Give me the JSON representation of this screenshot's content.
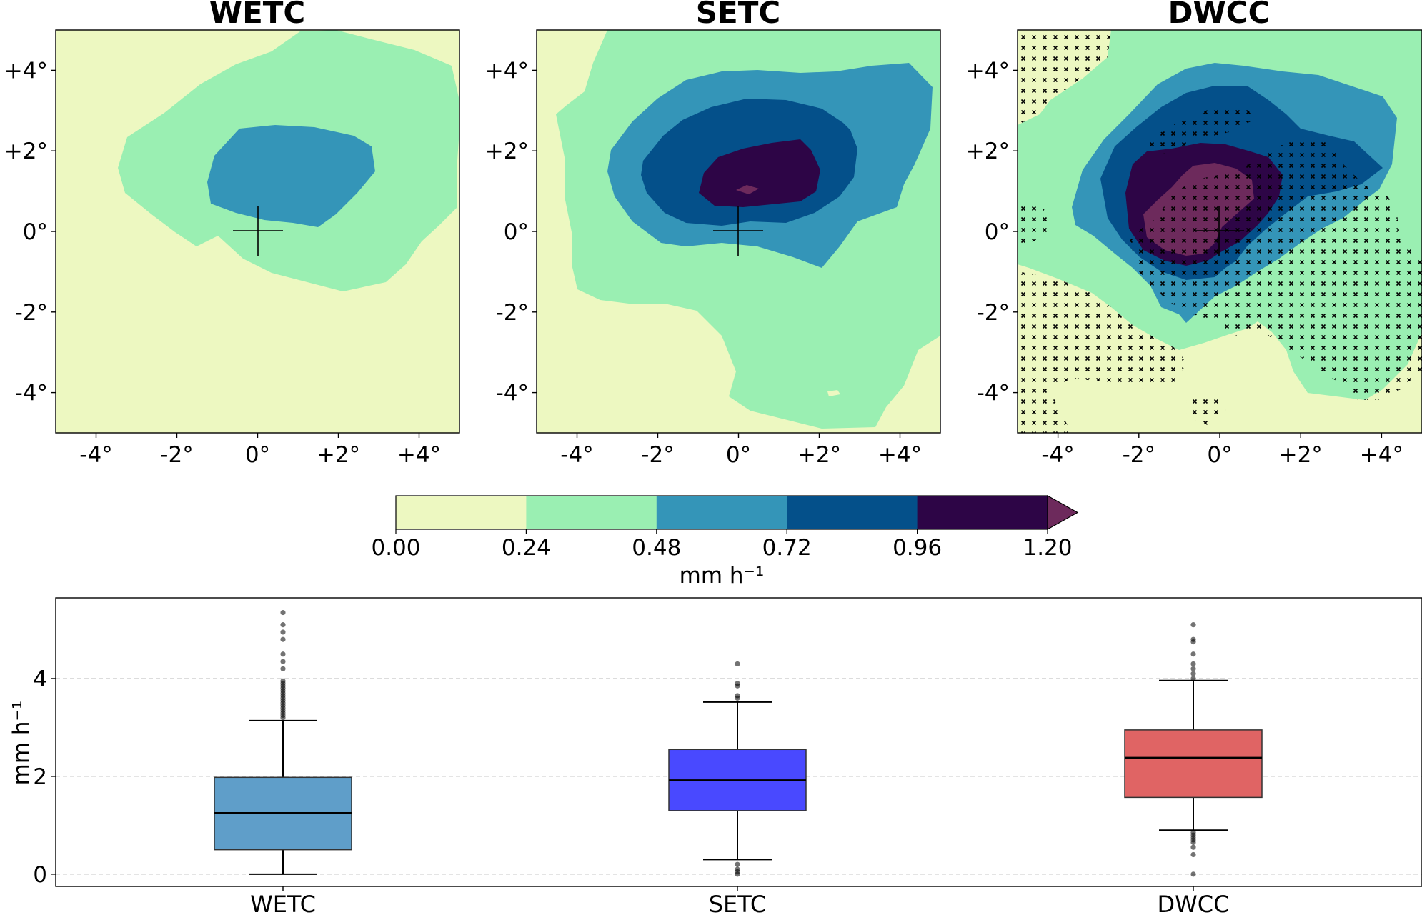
{
  "colors": {
    "levels": [
      "#edf8c1",
      "#9aefb2",
      "#3495b8",
      "#04508a",
      "#2d0546",
      "#6d2a5c"
    ],
    "hatch": "#000000",
    "grid": "#c8c8c8",
    "box_wetc": "#5f9ec9",
    "box_setc": "#4949ff",
    "box_dwcc": "#e06464"
  },
  "chart_data": [
    {
      "type": "heatmap",
      "title": "WETC",
      "xticks": [
        "-4°",
        "-2°",
        "0°",
        "+2°",
        "+4°"
      ],
      "yticks": [
        "+4°",
        "+2°",
        "0°",
        "-2°",
        "-4°"
      ],
      "xlim": [
        -5,
        5
      ],
      "ylim": [
        -5,
        5
      ],
      "center_marker": "+",
      "max_level_index": 2,
      "hatching": false
    },
    {
      "type": "heatmap",
      "title": "SETC",
      "xticks": [
        "-4°",
        "-2°",
        "0°",
        "+2°",
        "+4°"
      ],
      "yticks": [
        "+4°",
        "+2°",
        "0°",
        "-2°",
        "-4°"
      ],
      "xlim": [
        -5,
        5
      ],
      "ylim": [
        -5,
        5
      ],
      "center_marker": "+",
      "max_level_index": 4,
      "hatching": false
    },
    {
      "type": "heatmap",
      "title": "DWCC",
      "xticks": [
        "-4°",
        "-2°",
        "0°",
        "+2°",
        "+4°"
      ],
      "yticks": [
        "+4°",
        "+2°",
        "0°",
        "-2°",
        "-4°"
      ],
      "xlim": [
        -5,
        5
      ],
      "ylim": [
        -5,
        5
      ],
      "center_marker": "+",
      "max_level_index": 5,
      "hatching": true,
      "hatch_marker": "×"
    },
    {
      "type": "colorbar",
      "ticks": [
        "0.00",
        "0.24",
        "0.48",
        "0.72",
        "0.96",
        "1.20"
      ],
      "label": "mm h⁻¹",
      "extend": "max"
    },
    {
      "type": "box",
      "categories": [
        "WETC",
        "SETC",
        "DWCC"
      ],
      "ylabel": "mm h⁻¹",
      "ylim": [
        -0.25,
        5.65
      ],
      "yticks": [
        0,
        2,
        4
      ],
      "grid": "horizontal dashed",
      "boxes": [
        {
          "name": "WETC",
          "whislo": 0.0,
          "q1": 0.5,
          "median": 1.25,
          "q3": 1.98,
          "whishi": 3.14,
          "fliers": [
            3.2,
            3.25,
            3.3,
            3.35,
            3.4,
            3.45,
            3.5,
            3.55,
            3.6,
            3.65,
            3.7,
            3.75,
            3.8,
            3.85,
            3.9,
            3.95,
            4.2,
            4.35,
            4.5,
            4.8,
            4.95,
            5.1,
            5.35
          ]
        },
        {
          "name": "SETC",
          "whislo": 0.3,
          "q1": 1.3,
          "median": 1.92,
          "q3": 2.55,
          "whishi": 3.52,
          "fliers": [
            0.0,
            0.05,
            0.1,
            0.2,
            3.6,
            3.65,
            3.85,
            3.9,
            4.3
          ]
        },
        {
          "name": "DWCC",
          "whislo": 0.9,
          "q1": 1.57,
          "median": 2.38,
          "q3": 2.95,
          "whishi": 3.96,
          "fliers": [
            0.0,
            0.4,
            0.55,
            0.65,
            0.7,
            0.75,
            0.8,
            0.85,
            4.0,
            4.1,
            4.2,
            4.3,
            4.5,
            4.75,
            4.8,
            5.1
          ]
        }
      ]
    }
  ]
}
